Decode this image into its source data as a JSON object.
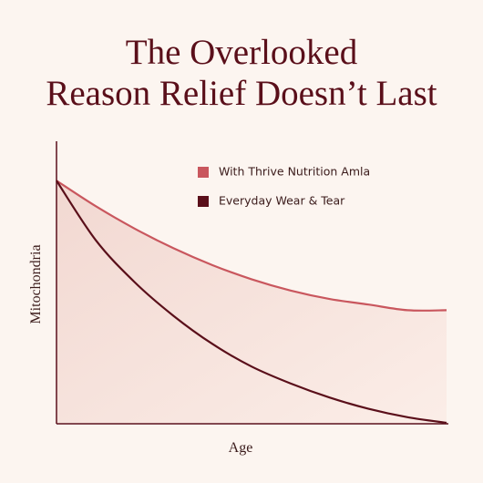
{
  "chart_data": {
    "type": "line",
    "title": [
      "The Overlooked",
      "Reason Relief Doesn’t Last"
    ],
    "x_label": "Age",
    "y_label": "Mitochondria",
    "x": [
      0,
      10,
      20,
      30,
      40,
      50,
      60,
      70,
      80,
      90,
      100
    ],
    "series": [
      {
        "name": "With Thrive Nutrition Amla",
        "color": "#c9575e",
        "values": [
          86,
          77,
          69,
          62,
          56,
          51,
          47,
          44,
          42,
          40,
          40
        ]
      },
      {
        "name": "Everyday Wear & Tear",
        "color": "#5a0f1a",
        "values": [
          86,
          65,
          50,
          38,
          28,
          20,
          14,
          9,
          5,
          2,
          0
        ]
      }
    ],
    "xlim": [
      0,
      100
    ],
    "ylim": [
      0,
      100
    ]
  }
}
